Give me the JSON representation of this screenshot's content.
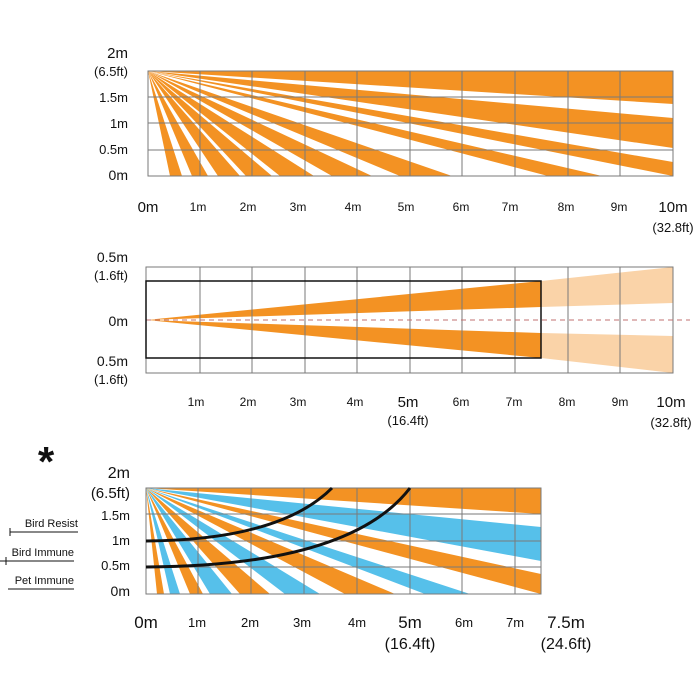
{
  "colors": {
    "orange": "#F39223",
    "light_orange": "#FAD3A8",
    "blue": "#56C0EA",
    "grid": "#7a7a7a",
    "line": "#111111",
    "centerline": "#c07070"
  },
  "asterisk": "*",
  "panel_top": {
    "y_labels": [
      {
        "text": "2m",
        "sub": "(6.5ft)"
      },
      {
        "text": "1.5m"
      },
      {
        "text": "1m"
      },
      {
        "text": "0.5m"
      },
      {
        "text": "0m"
      }
    ],
    "x_labels": [
      "0m",
      "1m",
      "2m",
      "3m",
      "4m",
      "5m",
      "6m",
      "7m",
      "8m",
      "9m",
      "10m"
    ],
    "x_end_sub": "(32.8ft)"
  },
  "panel_mid": {
    "y_labels": [
      {
        "text": "0.5m",
        "sub": "(1.6ft)"
      },
      {
        "text": "0m"
      },
      {
        "text": "0.5m",
        "sub": "(1.6ft)"
      }
    ],
    "x_labels": [
      "1m",
      "2m",
      "3m",
      "4m",
      "5m",
      "6m",
      "7m",
      "8m",
      "9m",
      "10m"
    ],
    "x_5m_sub": "(16.4ft)",
    "x_end_sub": "(32.8ft)"
  },
  "panel_bot": {
    "y_labels": [
      {
        "text": "2m",
        "sub": "(6.5ft)"
      },
      {
        "text": "1.5m"
      },
      {
        "text": "1m"
      },
      {
        "text": "0.5m"
      },
      {
        "text": "0m"
      }
    ],
    "x_labels": [
      "0m",
      "1m",
      "2m",
      "3m",
      "4m",
      "5m",
      "6m",
      "7m",
      "7.5m"
    ],
    "x_5m_sub": "(16.4ft)",
    "x_end_sub": "(24.6ft)",
    "immunity": [
      "Bird Resist",
      "Bird Immune",
      "Pet Immune"
    ]
  }
}
